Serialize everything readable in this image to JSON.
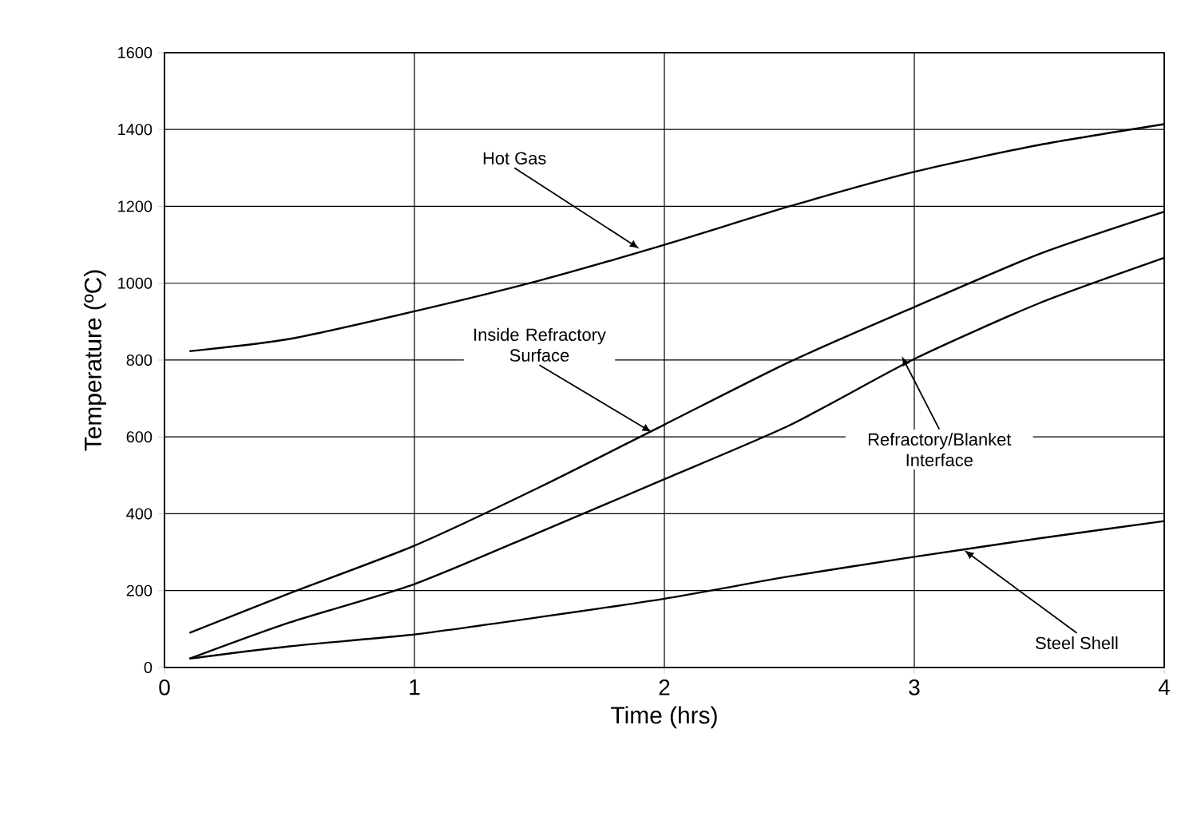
{
  "chart_data": {
    "type": "line",
    "xlabel": "Time (hrs)",
    "ylabel": "Temperature (ºC)",
    "x": [
      0.1,
      0.5,
      1,
      1.5,
      2,
      2.5,
      3,
      3.5,
      4
    ],
    "series": [
      {
        "color": "#000000",
        "values": [
          823,
          855,
          927,
          1007,
          1100,
          1200,
          1290,
          1360,
          1414
        ]
      },
      {
        "color": "#000000",
        "values": [
          90,
          193,
          317,
          469,
          632,
          795,
          938,
          1076,
          1186
        ]
      },
      {
        "color": "#000000",
        "values": [
          23,
          117,
          217,
          352,
          490,
          630,
          803,
          948,
          1066
        ]
      },
      {
        "color": "#000000",
        "values": [
          23,
          55,
          86,
          131,
          179,
          237,
          288,
          336,
          381
        ]
      }
    ],
    "xlim": [
      0,
      4
    ],
    "ylim": [
      0,
      1600
    ],
    "xticks": [
      0,
      1,
      2,
      3,
      4
    ],
    "yticks": [
      0,
      200,
      400,
      600,
      800,
      1000,
      1200,
      1400,
      1600
    ],
    "grid": true,
    "marker": "none",
    "line_style": "solid",
    "annotations": [
      {
        "text": "Hot Gas",
        "x": 1.9,
        "y": 1090
      },
      {
        "text": "Inside Refractory Surface",
        "x": 1.95,
        "y": 612
      },
      {
        "text": "Refractory/Blanket Interface",
        "x": 2.95,
        "y": 810
      },
      {
        "text": "Steel Shell",
        "x": 3.2,
        "y": 305
      }
    ]
  }
}
